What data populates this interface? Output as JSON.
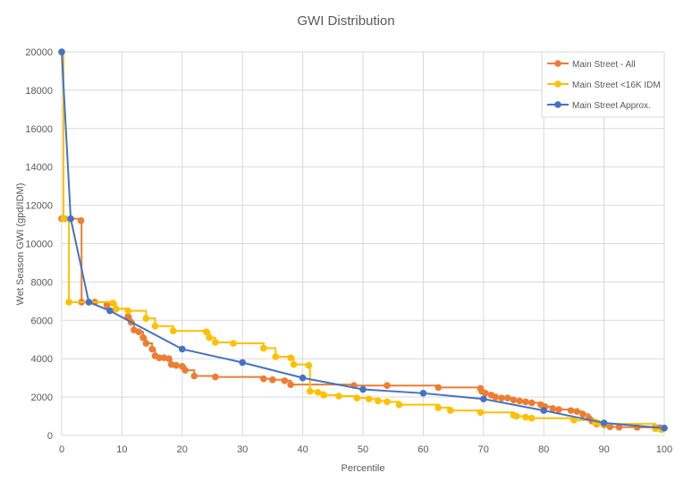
{
  "chart_data": {
    "type": "line",
    "title": "GWI Distribution",
    "xlabel": "Percentile",
    "ylabel": "Wet Season GWI (gpd/IDM)",
    "xlim": [
      0,
      100
    ],
    "ylim": [
      0,
      20000
    ],
    "grid": true,
    "legend_position": "top-right",
    "x_ticks": [
      "0",
      "10",
      "20",
      "30",
      "40",
      "50",
      "60",
      "70",
      "80",
      "90",
      "100"
    ],
    "y_ticks": [
      "0",
      "2000",
      "4000",
      "6000",
      "8000",
      "10000",
      "12000",
      "14000",
      "16000",
      "18000",
      "20000"
    ],
    "series": [
      {
        "name": "Main Street - All",
        "color": "#ED7D31",
        "line": "step",
        "points": [
          [
            0,
            11300
          ],
          [
            0.5,
            11300
          ],
          [
            3.2,
            11200
          ],
          [
            3.3,
            6950
          ],
          [
            5.5,
            6950
          ],
          [
            7.5,
            6800
          ],
          [
            9,
            6600
          ],
          [
            11,
            6200
          ],
          [
            11.5,
            5900
          ],
          [
            12,
            5500
          ],
          [
            12.8,
            5400
          ],
          [
            13.5,
            5100
          ],
          [
            14,
            4800
          ],
          [
            15,
            4500
          ],
          [
            15.5,
            4150
          ],
          [
            16.2,
            4050
          ],
          [
            17,
            4050
          ],
          [
            17.8,
            4000
          ],
          [
            18.2,
            3700
          ],
          [
            19,
            3650
          ],
          [
            20,
            3600
          ],
          [
            20.5,
            3400
          ],
          [
            22,
            3100
          ],
          [
            25.5,
            3050
          ],
          [
            33.5,
            2950
          ],
          [
            35,
            2900
          ],
          [
            37,
            2850
          ],
          [
            38,
            2650
          ],
          [
            48.5,
            2600
          ],
          [
            54,
            2600
          ],
          [
            62.5,
            2500
          ],
          [
            69.5,
            2450
          ],
          [
            69.7,
            2300
          ],
          [
            70.3,
            2200
          ],
          [
            71.3,
            2100
          ],
          [
            72,
            2000
          ],
          [
            73,
            1950
          ],
          [
            74,
            1950
          ],
          [
            75,
            1850
          ],
          [
            76,
            1800
          ],
          [
            77,
            1750
          ],
          [
            78,
            1700
          ],
          [
            79.5,
            1600
          ],
          [
            80.2,
            1500
          ],
          [
            81.5,
            1400
          ],
          [
            82.5,
            1350
          ],
          [
            84.5,
            1300
          ],
          [
            85.5,
            1250
          ],
          [
            86.5,
            1100
          ],
          [
            87.5,
            900
          ],
          [
            88,
            750
          ],
          [
            88.8,
            600
          ],
          [
            90,
            550
          ],
          [
            91,
            450
          ],
          [
            92.5,
            430
          ],
          [
            95.5,
            420
          ],
          [
            98.5,
            410
          ],
          [
            99.3,
            400
          ]
        ]
      },
      {
        "name": "Main Street <16K IDM",
        "color": "#FFC000",
        "line": "step",
        "points": [
          [
            0,
            20000
          ],
          [
            0.3,
            11300
          ],
          [
            1.2,
            6950
          ],
          [
            8.5,
            6900
          ],
          [
            9,
            6600
          ],
          [
            11,
            6500
          ],
          [
            14,
            6100
          ],
          [
            15.5,
            5700
          ],
          [
            18.5,
            5450
          ],
          [
            24,
            5400
          ],
          [
            24.5,
            5100
          ],
          [
            25.5,
            4850
          ],
          [
            28.5,
            4800
          ],
          [
            33.5,
            4550
          ],
          [
            35.5,
            4100
          ],
          [
            38,
            4050
          ],
          [
            38.5,
            3700
          ],
          [
            41,
            3650
          ],
          [
            41.2,
            2300
          ],
          [
            42.5,
            2250
          ],
          [
            43.5,
            2100
          ],
          [
            46,
            2050
          ],
          [
            49,
            1950
          ],
          [
            51,
            1900
          ],
          [
            52.5,
            1800
          ],
          [
            54,
            1750
          ],
          [
            56,
            1600
          ],
          [
            62.5,
            1450
          ],
          [
            64.5,
            1300
          ],
          [
            69.5,
            1200
          ],
          [
            75,
            1050
          ],
          [
            75.5,
            1000
          ],
          [
            77,
            950
          ],
          [
            78,
            900
          ],
          [
            85,
            800
          ],
          [
            88.5,
            700
          ],
          [
            89,
            650
          ],
          [
            90,
            600
          ],
          [
            98.5,
            350
          ],
          [
            99.5,
            300
          ]
        ]
      },
      {
        "name": "Main Street Approx.",
        "color": "#4472C4",
        "line": "straight",
        "points": [
          [
            0,
            20000
          ],
          [
            1.5,
            11300
          ],
          [
            4.5,
            6950
          ],
          [
            8,
            6500
          ],
          [
            20,
            4500
          ],
          [
            30,
            3800
          ],
          [
            40,
            3000
          ],
          [
            50,
            2400
          ],
          [
            60,
            2200
          ],
          [
            70,
            1900
          ],
          [
            80,
            1300
          ],
          [
            90,
            650
          ],
          [
            100,
            380
          ]
        ]
      }
    ]
  }
}
